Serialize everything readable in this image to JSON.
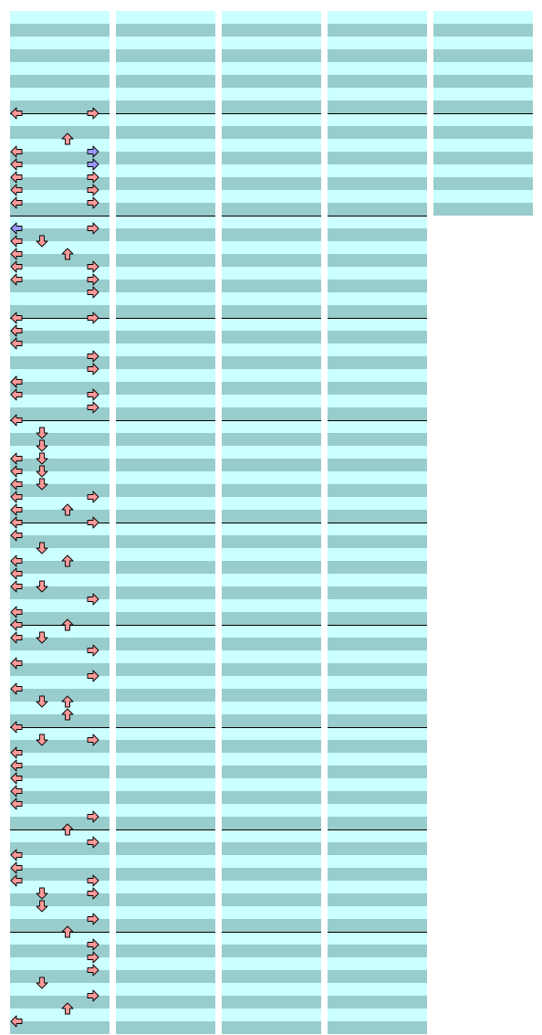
{
  "chart_data": {
    "type": "step_chart",
    "lanes": [
      "left",
      "down",
      "up",
      "right"
    ],
    "beats_per_measure": 4,
    "rows_per_beat": 2,
    "columns": [
      {
        "measures": 10
      },
      {
        "measures": 10
      },
      {
        "measures": 10
      },
      {
        "measures": 10
      },
      {
        "measures": 2
      }
    ],
    "notes": [
      [
        0,
        8,
        "left",
        "red"
      ],
      [
        0,
        8,
        "right",
        "red"
      ],
      [
        0,
        10,
        "up",
        "red"
      ],
      [
        0,
        11,
        "left",
        "red"
      ],
      [
        0,
        11,
        "right",
        "blue"
      ],
      [
        0,
        12,
        "left",
        "red"
      ],
      [
        0,
        12,
        "right",
        "blue"
      ],
      [
        0,
        13,
        "left",
        "red"
      ],
      [
        0,
        13,
        "right",
        "red"
      ],
      [
        0,
        14,
        "left",
        "red"
      ],
      [
        0,
        14,
        "right",
        "red"
      ],
      [
        0,
        15,
        "left",
        "red"
      ],
      [
        0,
        15,
        "right",
        "red"
      ],
      [
        0,
        17,
        "left",
        "blue"
      ],
      [
        0,
        17,
        "right",
        "red"
      ],
      [
        0,
        18,
        "left",
        "red"
      ],
      [
        0,
        18,
        "down",
        "red"
      ],
      [
        0,
        19,
        "left",
        "red"
      ],
      [
        0,
        19,
        "up",
        "red"
      ],
      [
        0,
        20,
        "left",
        "red"
      ],
      [
        0,
        20,
        "right",
        "red"
      ],
      [
        0,
        21,
        "left",
        "red"
      ],
      [
        0,
        21,
        "right",
        "red"
      ],
      [
        0,
        22,
        "right",
        "red"
      ],
      [
        0,
        24,
        "left",
        "red"
      ],
      [
        0,
        24,
        "right",
        "red"
      ],
      [
        0,
        25,
        "left",
        "red"
      ],
      [
        0,
        25,
        "left",
        "red"
      ],
      [
        0,
        26,
        "left",
        "red"
      ],
      [
        0,
        27,
        "right",
        "red"
      ],
      [
        0,
        28,
        "right",
        "red"
      ],
      [
        0,
        29,
        "left",
        "red"
      ],
      [
        0,
        29,
        "left",
        "red"
      ],
      [
        0,
        30,
        "left",
        "red"
      ],
      [
        0,
        30,
        "right",
        "red"
      ],
      [
        0,
        31,
        "right",
        "red"
      ],
      [
        0,
        32,
        "left",
        "red"
      ],
      [
        0,
        33,
        "down",
        "red"
      ],
      [
        0,
        34,
        "down",
        "red"
      ],
      [
        0,
        35,
        "down",
        "red"
      ],
      [
        0,
        35,
        "left",
        "red"
      ],
      [
        0,
        36,
        "left",
        "red"
      ],
      [
        0,
        36,
        "down",
        "red"
      ],
      [
        0,
        37,
        "left",
        "red"
      ],
      [
        0,
        37,
        "down",
        "red"
      ],
      [
        0,
        38,
        "right",
        "red"
      ],
      [
        0,
        38,
        "left",
        "red"
      ],
      [
        0,
        39,
        "left",
        "red"
      ],
      [
        0,
        39,
        "up",
        "red"
      ],
      [
        0,
        40,
        "left",
        "red"
      ],
      [
        0,
        40,
        "right",
        "red"
      ],
      [
        0,
        41,
        "left",
        "red"
      ],
      [
        0,
        42,
        "down",
        "red"
      ],
      [
        0,
        43,
        "left",
        "red"
      ],
      [
        0,
        43,
        "up",
        "red"
      ],
      [
        0,
        44,
        "left",
        "red"
      ],
      [
        0,
        45,
        "left",
        "red"
      ],
      [
        0,
        45,
        "down",
        "red"
      ],
      [
        0,
        46,
        "right",
        "red"
      ],
      [
        0,
        47,
        "left",
        "red"
      ],
      [
        0,
        48,
        "left",
        "red"
      ],
      [
        0,
        48,
        "up",
        "red"
      ],
      [
        0,
        49,
        "left",
        "red"
      ],
      [
        0,
        49,
        "down",
        "red"
      ],
      [
        0,
        50,
        "right",
        "red"
      ],
      [
        0,
        51,
        "left",
        "red"
      ],
      [
        0,
        52,
        "right",
        "red"
      ],
      [
        0,
        53,
        "left",
        "red"
      ],
      [
        0,
        54,
        "up",
        "red"
      ],
      [
        0,
        54,
        "down",
        "red"
      ],
      [
        0,
        55,
        "up",
        "red"
      ],
      [
        0,
        56,
        "left",
        "red"
      ],
      [
        0,
        57,
        "right",
        "red"
      ],
      [
        0,
        57,
        "down",
        "red"
      ],
      [
        0,
        58,
        "left",
        "red"
      ],
      [
        0,
        59,
        "left",
        "red"
      ],
      [
        0,
        60,
        "left",
        "red"
      ],
      [
        0,
        61,
        "left",
        "red"
      ],
      [
        0,
        62,
        "left",
        "red"
      ],
      [
        0,
        63,
        "right",
        "red"
      ],
      [
        0,
        64,
        "up",
        "red"
      ],
      [
        0,
        65,
        "right",
        "red"
      ],
      [
        0,
        66,
        "left",
        "red"
      ],
      [
        0,
        67,
        "left",
        "red"
      ],
      [
        0,
        68,
        "left",
        "red"
      ],
      [
        0,
        68,
        "right",
        "red"
      ],
      [
        0,
        69,
        "right",
        "red"
      ],
      [
        0,
        69,
        "down",
        "red"
      ],
      [
        0,
        70,
        "down",
        "red"
      ],
      [
        0,
        71,
        "right",
        "red"
      ],
      [
        0,
        72,
        "up",
        "red"
      ],
      [
        0,
        73,
        "right",
        "red"
      ],
      [
        0,
        74,
        "right",
        "red"
      ],
      [
        0,
        75,
        "right",
        "red"
      ],
      [
        0,
        76,
        "down",
        "red"
      ],
      [
        0,
        77,
        "right",
        "red"
      ],
      [
        0,
        78,
        "up",
        "red"
      ],
      [
        0,
        79,
        "left",
        "red"
      ]
    ]
  }
}
